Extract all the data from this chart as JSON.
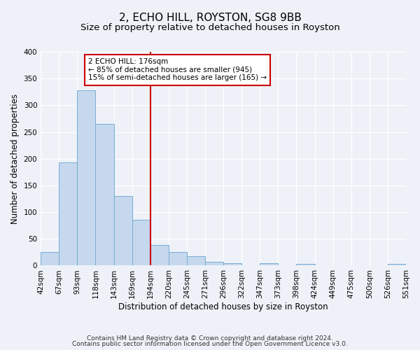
{
  "title": "2, ECHO HILL, ROYSTON, SG8 9BB",
  "subtitle": "Size of property relative to detached houses in Royston",
  "xlabel": "Distribution of detached houses by size in Royston",
  "ylabel": "Number of detached properties",
  "bar_values": [
    25,
    193,
    328,
    265,
    130,
    86,
    38,
    26,
    17,
    7,
    4,
    0,
    4,
    0,
    3,
    0,
    0,
    0,
    0,
    3
  ],
  "bar_labels": [
    "42sqm",
    "67sqm",
    "93sqm",
    "118sqm",
    "143sqm",
    "169sqm",
    "194sqm",
    "220sqm",
    "245sqm",
    "271sqm",
    "296sqm",
    "322sqm",
    "347sqm",
    "373sqm",
    "398sqm",
    "424sqm",
    "449sqm",
    "475sqm",
    "500sqm",
    "526sqm",
    "551sqm"
  ],
  "bar_color": "#c5d8ed",
  "bar_edge_color": "#7aadd4",
  "ylim": [
    0,
    400
  ],
  "yticks": [
    0,
    50,
    100,
    150,
    200,
    250,
    300,
    350,
    400
  ],
  "vline_color": "#cc0000",
  "annotation_title": "2 ECHO HILL: 176sqm",
  "annotation_line1": "← 85% of detached houses are smaller (945)",
  "annotation_line2": "15% of semi-detached houses are larger (165) →",
  "annotation_box_color": "#ffffff",
  "annotation_box_edge": "#cc0000",
  "footer1": "Contains HM Land Registry data © Crown copyright and database right 2024.",
  "footer2": "Contains public sector information licensed under the Open Government Licence v3.0.",
  "bg_color": "#eef2f8",
  "grid_color": "#ffffff",
  "title_fontsize": 11,
  "subtitle_fontsize": 9.5,
  "axis_label_fontsize": 8.5,
  "tick_fontsize": 7.5,
  "footer_fontsize": 6.5
}
